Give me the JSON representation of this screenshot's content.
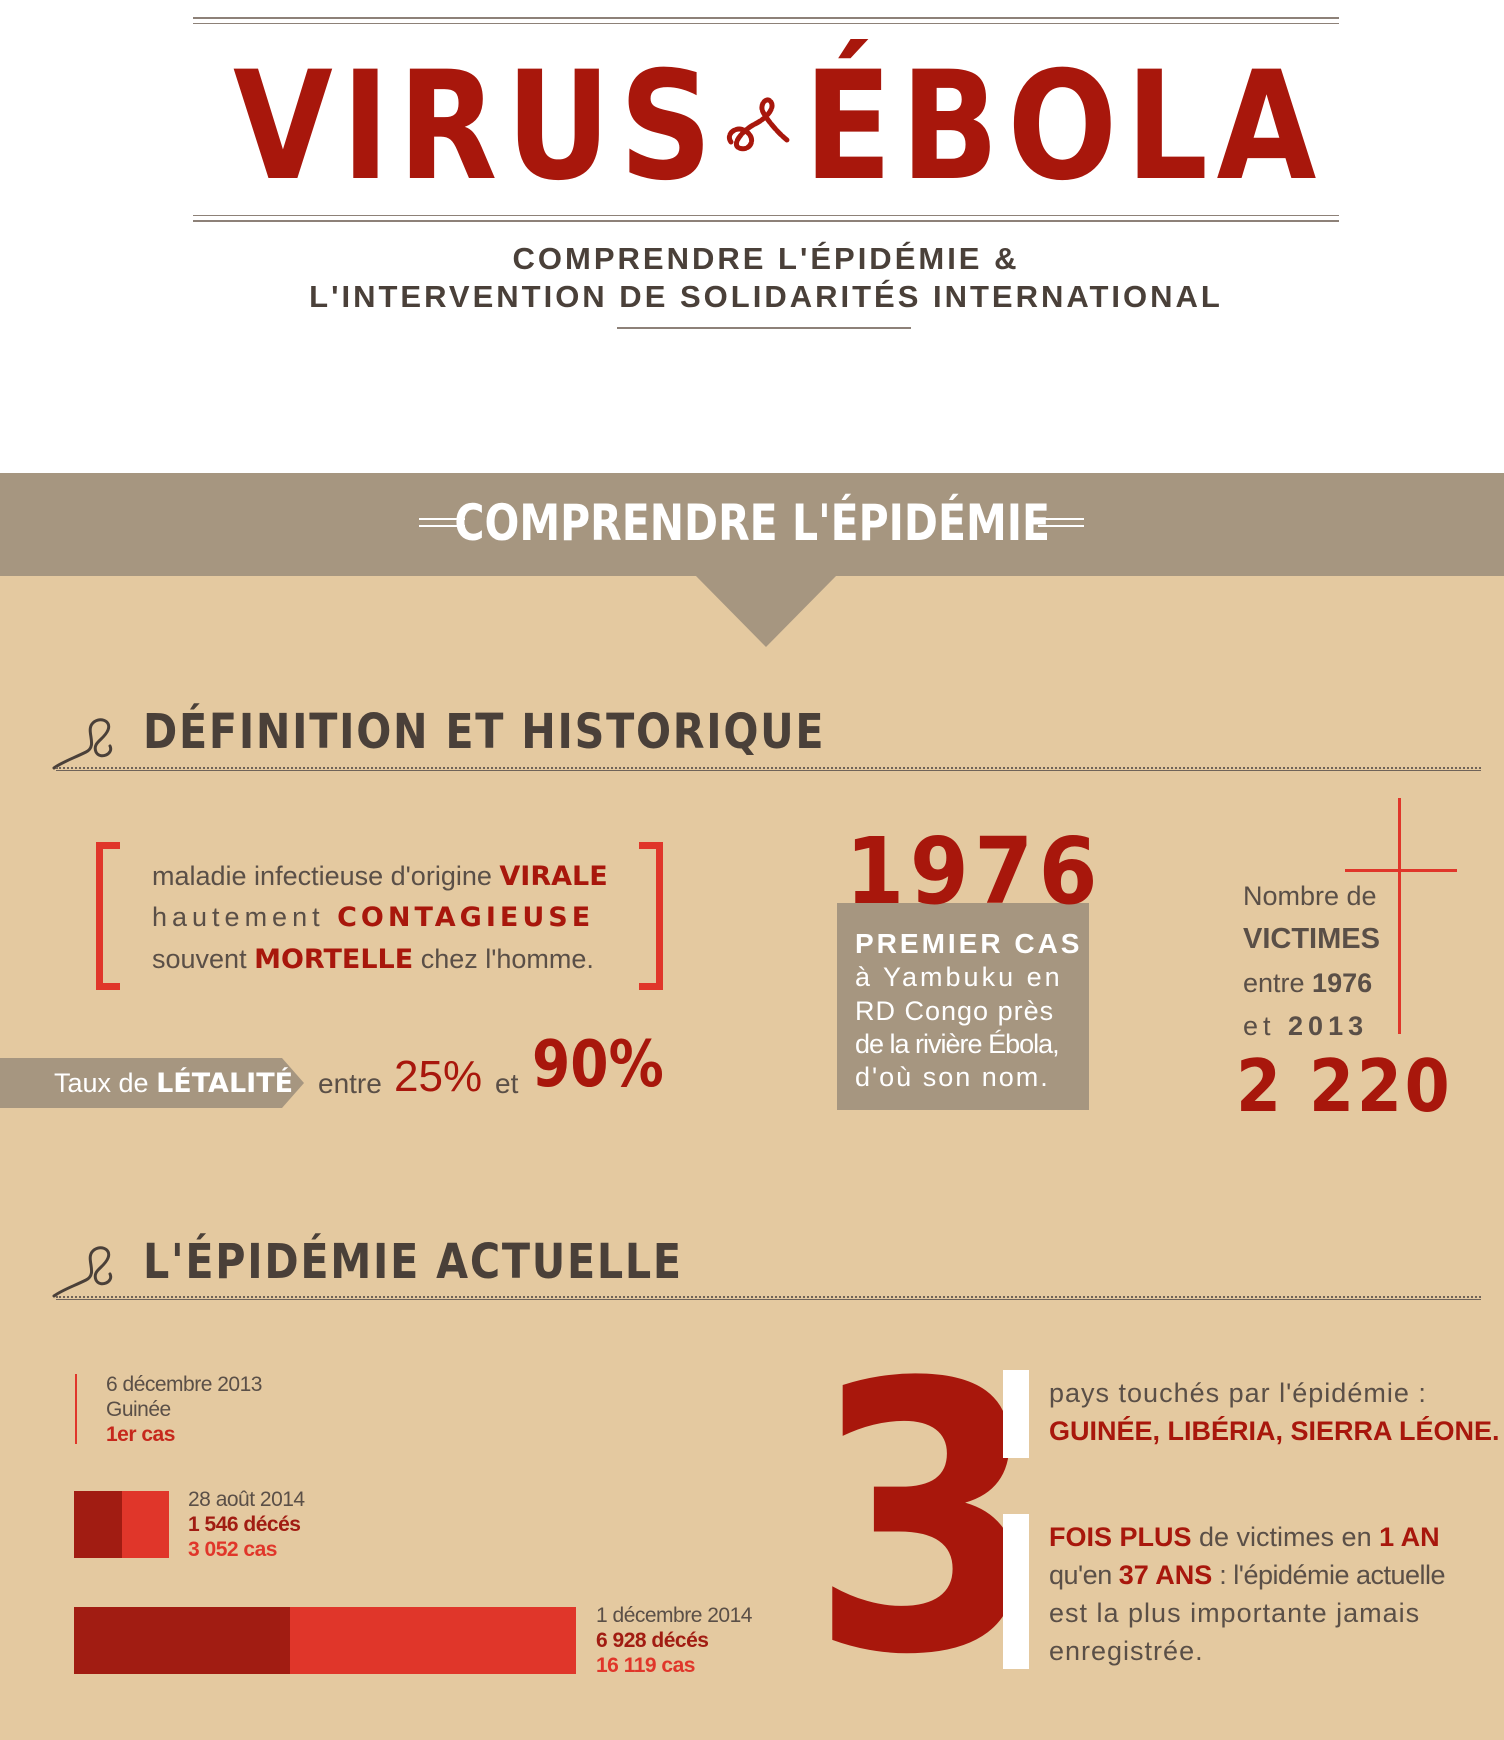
{
  "header": {
    "title_left": "VIRUS",
    "title_right": "ÉBOLA",
    "subtitle_line1": "COMPRENDRE L'ÉPIDÉMIE &",
    "subtitle_line2": "L'INTERVENTION DE SOLIDARITÉS INTERNATIONAL"
  },
  "banner": {
    "title": "COMPRENDRE L'ÉPIDÉMIE"
  },
  "definition": {
    "heading": "DÉFINITION ET HISTORIQUE",
    "line1_text": "maladie infectieuse d'origine ",
    "line1_bold": "VIRALE",
    "line2_text": "hautement ",
    "line2_bold": "CONTAGIEUSE",
    "line3_pre": "souvent ",
    "line3_bold": "MORTELLE",
    "line3_post": " chez l'homme.",
    "lethality_label": "Taux de ",
    "lethality_bold": "LÉTALITÉ",
    "lethality_between": "entre",
    "lethality_min": "25%",
    "lethality_and": "et",
    "lethality_max": "90%"
  },
  "first_case": {
    "year": "1976",
    "heading": "PREMIER CAS",
    "line1": "à Yambuku en",
    "line2": "RD Congo près",
    "line3": "de la rivière Ébola,",
    "line4": "d'où son nom."
  },
  "victims": {
    "line1": "Nombre de",
    "line2": "VICTIMES",
    "line3_pre": "entre ",
    "line3_year": "1976",
    "line4_pre": "et ",
    "line4_year": "2013",
    "count": "2 220"
  },
  "current": {
    "heading": "L'ÉPIDÉMIE ACTUELLE",
    "timeline": [
      {
        "date": "6 décembre 2013",
        "place": "Guinée",
        "note": "1er cas"
      },
      {
        "date": "28 août 2014",
        "deaths": "1 546 décés",
        "cases": "3 052 cas",
        "deaths_value": 1546,
        "cases_value": 3052
      },
      {
        "date": "1 décembre 2014",
        "deaths": "6 928 décés",
        "cases": "16 119 cas",
        "deaths_value": 6928,
        "cases_value": 16119
      }
    ],
    "big_number": "3",
    "fact1_line1": "pays touchés par l'épidémie :",
    "fact1_line2": "GUINÉE, LIBÉRIA, SIERRA LÉONE.",
    "fact2_bold1": "FOIS PLUS",
    "fact2_text1": " de victimes en ",
    "fact2_bold2": "1 AN",
    "fact2_text2": "qu'en ",
    "fact2_bold3": "37 ANS",
    "fact2_text3": " : l'épidémie actuelle",
    "fact2_line3": "est la plus importante jamais",
    "fact2_line4": "enregistrée."
  },
  "colors": {
    "red": "#a8170c",
    "bright_red": "#e0362a",
    "beige": "#e4c9a0",
    "taupe": "#a69680"
  },
  "icons": {
    "title_separator": "rope-ampersand-icon",
    "section_marker": "rope-icon"
  }
}
